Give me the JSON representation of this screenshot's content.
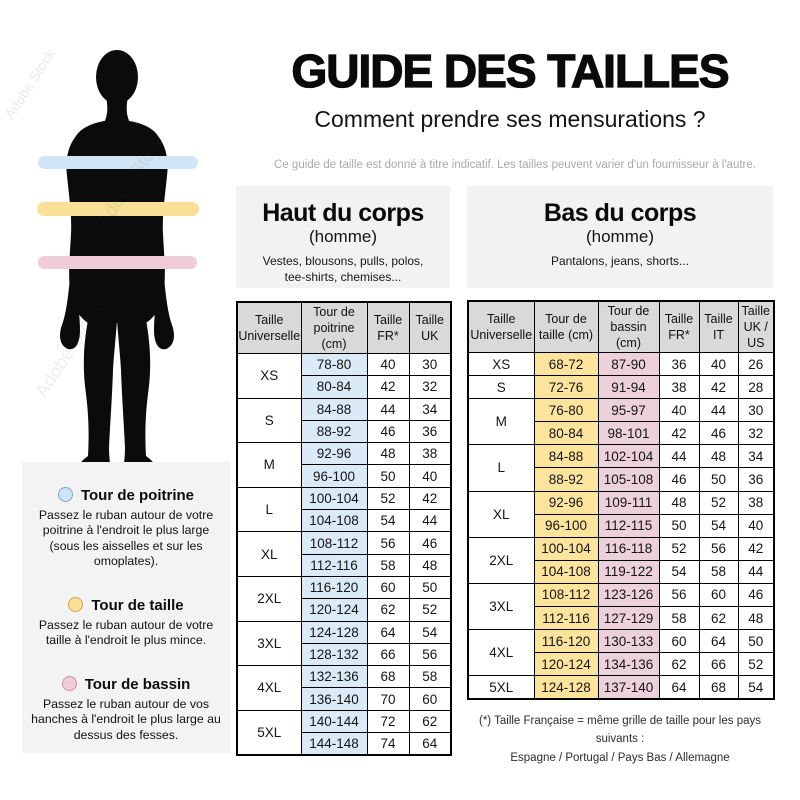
{
  "header": {
    "title": "GUIDE DES TAILLES",
    "subtitle": "Comment prendre ses mensurations ?",
    "disclaimer": "Ce guide de taille est donné à titre indicatif. Les tailles peuvent varier d'un fournisseur à l'autre."
  },
  "watermark": "Adobe Stock",
  "colors": {
    "band_chest": "#cfe4f5",
    "band_waist": "#fadf96",
    "band_hips": "#efccd8",
    "table_header_bg": "#d9d9d9",
    "chest_col_bg": "#daeaf7",
    "waist_col_bg": "#fde49c",
    "hips_col_bg": "#ecd0db",
    "panel_bg": "#f2f2f2",
    "silhouette": "#0b0b0b"
  },
  "legend": {
    "items": [
      {
        "label": "Tour de poitrine",
        "color": "#cfe4f5",
        "description": "Passez le ruban autour de votre poitrine à l'endroit le plus large (sous les aisselles et sur les omoplates)."
      },
      {
        "label": "Tour de taille",
        "color": "#fadf96",
        "description": "Passez le ruban autour de votre taille à l'endroit le plus mince."
      },
      {
        "label": "Tour de bassin",
        "color": "#efccd8",
        "description": "Passez le ruban autour de vos hanches à l'endroit le plus large au dessus des fesses."
      }
    ]
  },
  "upper_table": {
    "title": "Haut du corps",
    "audience": "(homme)",
    "description": "Vestes, blousons, pulls, polos, tee-shirts, chemises...",
    "columns": [
      "Taille Universelle",
      "Tour de poitrine (cm)",
      "Taille FR*",
      "Taille UK"
    ],
    "column_colors": [
      "#ffffff",
      "#daeaf7",
      "#ffffff",
      "#ffffff"
    ],
    "rows": [
      {
        "size": "XS",
        "entries": [
          [
            "78-80",
            "40",
            "30"
          ],
          [
            "80-84",
            "42",
            "32"
          ]
        ]
      },
      {
        "size": "S",
        "entries": [
          [
            "84-88",
            "44",
            "34"
          ],
          [
            "88-92",
            "46",
            "36"
          ]
        ]
      },
      {
        "size": "M",
        "entries": [
          [
            "92-96",
            "48",
            "38"
          ],
          [
            "96-100",
            "50",
            "40"
          ]
        ]
      },
      {
        "size": "L",
        "entries": [
          [
            "100-104",
            "52",
            "42"
          ],
          [
            "104-108",
            "54",
            "44"
          ]
        ]
      },
      {
        "size": "XL",
        "entries": [
          [
            "108-112",
            "56",
            "46"
          ],
          [
            "112-116",
            "58",
            "48"
          ]
        ]
      },
      {
        "size": "2XL",
        "entries": [
          [
            "116-120",
            "60",
            "50"
          ],
          [
            "120-124",
            "62",
            "52"
          ]
        ]
      },
      {
        "size": "3XL",
        "entries": [
          [
            "124-128",
            "64",
            "54"
          ],
          [
            "128-132",
            "66",
            "56"
          ]
        ]
      },
      {
        "size": "4XL",
        "entries": [
          [
            "132-136",
            "68",
            "58"
          ],
          [
            "136-140",
            "70",
            "60"
          ]
        ]
      },
      {
        "size": "5XL",
        "entries": [
          [
            "140-144",
            "72",
            "62"
          ],
          [
            "144-148",
            "74",
            "64"
          ]
        ]
      }
    ]
  },
  "lower_table": {
    "title": "Bas du corps",
    "audience": "(homme)",
    "description": "Pantalons, jeans, shorts...",
    "columns": [
      "Taille Universelle",
      "Tour de taille (cm)",
      "Tour de bassin (cm)",
      "Taille FR*",
      "Taille IT",
      "Taille UK / US"
    ],
    "column_colors": [
      "#ffffff",
      "#fde49c",
      "#ecd0db",
      "#ffffff",
      "#ffffff",
      "#ffffff"
    ],
    "rows": [
      {
        "size": "XS",
        "entries": [
          [
            "68-72",
            "87-90",
            "36",
            "40",
            "26"
          ]
        ]
      },
      {
        "size": "S",
        "entries": [
          [
            "72-76",
            "91-94",
            "38",
            "42",
            "28"
          ]
        ]
      },
      {
        "size": "M",
        "entries": [
          [
            "76-80",
            "95-97",
            "40",
            "44",
            "30"
          ],
          [
            "80-84",
            "98-101",
            "42",
            "46",
            "32"
          ]
        ]
      },
      {
        "size": "L",
        "entries": [
          [
            "84-88",
            "102-104",
            "44",
            "48",
            "34"
          ],
          [
            "88-92",
            "105-108",
            "46",
            "50",
            "36"
          ]
        ]
      },
      {
        "size": "XL",
        "entries": [
          [
            "92-96",
            "109-111",
            "48",
            "52",
            "38"
          ],
          [
            "96-100",
            "112-115",
            "50",
            "54",
            "40"
          ]
        ]
      },
      {
        "size": "2XL",
        "entries": [
          [
            "100-104",
            "116-118",
            "52",
            "56",
            "42"
          ],
          [
            "104-108",
            "119-122",
            "54",
            "58",
            "44"
          ]
        ]
      },
      {
        "size": "3XL",
        "entries": [
          [
            "108-112",
            "123-126",
            "56",
            "60",
            "46"
          ],
          [
            "112-116",
            "127-129",
            "58",
            "62",
            "48"
          ]
        ]
      },
      {
        "size": "4XL",
        "entries": [
          [
            "116-120",
            "130-133",
            "60",
            "64",
            "50"
          ],
          [
            "120-124",
            "134-136",
            "62",
            "66",
            "52"
          ]
        ]
      },
      {
        "size": "5XL",
        "entries": [
          [
            "124-128",
            "137-140",
            "64",
            "68",
            "54"
          ]
        ]
      }
    ]
  },
  "footnote": {
    "line1": "(*) Taille Française = même grille de taille pour les pays suivants :",
    "line2": "Espagne / Portugal / Pays Bas / Allemagne"
  }
}
